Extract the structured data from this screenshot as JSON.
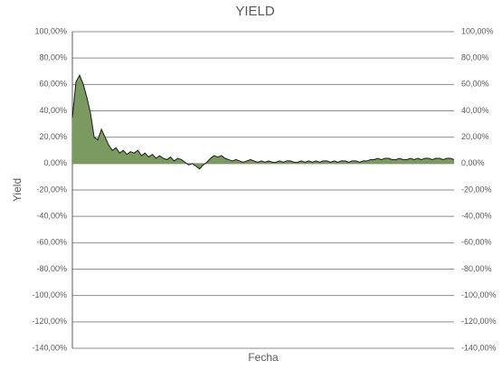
{
  "chart_data": {
    "type": "area",
    "title": "YIELD",
    "y_label": "Yield",
    "x_label": "Fecha",
    "values": [
      35,
      62,
      67,
      60,
      50,
      38,
      20,
      18,
      26,
      20,
      14,
      10,
      12,
      8,
      10,
      7,
      9,
      8,
      10,
      6,
      8,
      5,
      7,
      4,
      6,
      4,
      3,
      5,
      2,
      4,
      3,
      1,
      -1,
      0,
      -2,
      -4,
      -1,
      1,
      4,
      6,
      5,
      6,
      4,
      3,
      2,
      3,
      2,
      1,
      2,
      3,
      2,
      1,
      2,
      1,
      2,
      1,
      1,
      2,
      1,
      2,
      2,
      1,
      1,
      2,
      1,
      2,
      1,
      2,
      1,
      2,
      2,
      1,
      2,
      1,
      2,
      2,
      1,
      2,
      2,
      1,
      2,
      2,
      3,
      3,
      4,
      3,
      4,
      4,
      3,
      3,
      4,
      3,
      3,
      4,
      3,
      4,
      3,
      4,
      4,
      3,
      4,
      4,
      3,
      4,
      4,
      3
    ],
    "color": "#7a9a60",
    "line_color": "#1a1a1a",
    "ylim": [
      -140,
      100
    ],
    "yticks": [
      {
        "value": -140,
        "label": "-140,00%"
      },
      {
        "value": -120,
        "label": "-120,00%"
      },
      {
        "value": -100,
        "label": "-100,00%"
      },
      {
        "value": -80,
        "label": "-80,00%"
      },
      {
        "value": -60,
        "label": "-60,00%"
      },
      {
        "value": -40,
        "label": "-40,00%"
      },
      {
        "value": -20,
        "label": "-20,00%"
      },
      {
        "value": 0,
        "label": "0,00%"
      },
      {
        "value": 20,
        "label": "20,00%"
      },
      {
        "value": 40,
        "label": "40,00%"
      },
      {
        "value": 60,
        "label": "60,00%"
      },
      {
        "value": 80,
        "label": "80,00%"
      },
      {
        "value": 100,
        "label": "100,00%"
      }
    ],
    "grid": true
  }
}
